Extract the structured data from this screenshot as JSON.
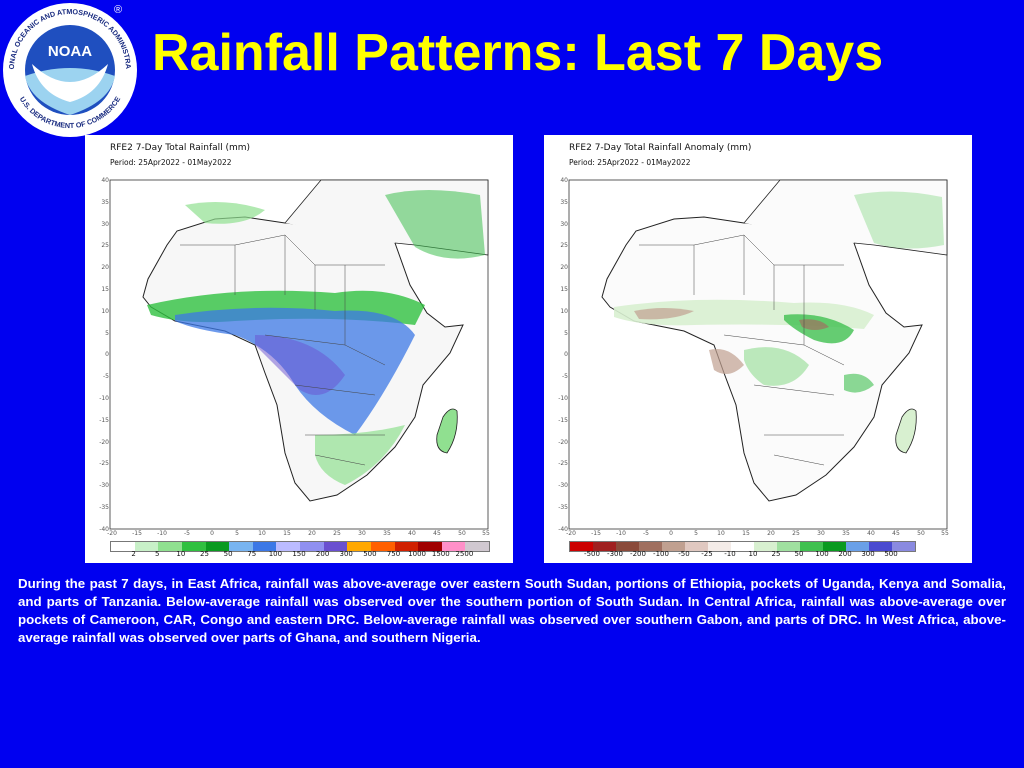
{
  "logo": {
    "center_text": "NOAA",
    "ring_text_top": "NATIONAL OCEANIC AND ATMOSPHERIC ADMINISTRATION",
    "ring_text_bottom": "U.S. DEPARTMENT OF COMMERCE",
    "registered_mark": "®"
  },
  "header": {
    "title": "Rainfall Patterns: Last 7 Days"
  },
  "maps": [
    {
      "title": "RFE2 7-Day Total Rainfall (mm)",
      "period": "Period: 25Apr2022 - 01May2022",
      "y_ticks": [
        "40",
        "35",
        "30",
        "25",
        "20",
        "15",
        "10",
        "5",
        "0",
        "-5",
        "-10",
        "-15",
        "-20",
        "-25",
        "-30",
        "-35",
        "-40"
      ],
      "x_ticks": [
        "-20",
        "-15",
        "-10",
        "-5",
        "0",
        "5",
        "10",
        "15",
        "20",
        "25",
        "30",
        "35",
        "40",
        "45",
        "50",
        "55"
      ],
      "legend_labels": [
        "2",
        "5",
        "10",
        "25",
        "50",
        "75",
        "100",
        "150",
        "200",
        "300",
        "500",
        "750",
        "1000",
        "1500",
        "2500"
      ],
      "legend_colors": [
        "#ffffff",
        "#c8f0c8",
        "#90e090",
        "#30c040",
        "#0a9a20",
        "#78b4f0",
        "#3c78e6",
        "#bbbbff",
        "#9090f0",
        "#6a50d0",
        "#ffa800",
        "#ff6000",
        "#d02000",
        "#a00000",
        "#ff90c8",
        "#d0c8d0"
      ]
    },
    {
      "title": "RFE2 7-Day Total Rainfall Anomaly (mm)",
      "period": "Period: 25Apr2022 - 01May2022",
      "y_ticks": [
        "40",
        "35",
        "30",
        "25",
        "20",
        "15",
        "10",
        "5",
        "0",
        "-5",
        "-10",
        "-15",
        "-20",
        "-25",
        "-30",
        "-35",
        "-40"
      ],
      "x_ticks": [
        "-20",
        "-15",
        "-10",
        "-5",
        "0",
        "5",
        "10",
        "15",
        "20",
        "25",
        "30",
        "35",
        "40",
        "45",
        "50",
        "55"
      ],
      "legend_labels": [
        "-500",
        "-300",
        "-200",
        "-100",
        "-50",
        "-25",
        "-10",
        "10",
        "25",
        "50",
        "100",
        "200",
        "300",
        "500"
      ],
      "legend_colors": [
        "#cc0000",
        "#a02020",
        "#8a4a3a",
        "#a07060",
        "#c0a090",
        "#e0c8c0",
        "#f4ece8",
        "#ffffff",
        "#d8f0d0",
        "#a0e0a0",
        "#40c050",
        "#0a9a20",
        "#6aa0e8",
        "#4a4ad0",
        "#8a8ae0"
      ]
    }
  ],
  "description": "During the past 7 days, in East Africa, rainfall was above-average over eastern South Sudan, portions of Ethiopia, pockets of Uganda, Kenya and Somalia, and parts of Tanzania. Below-average rainfall was observed over the southern portion of South Sudan. In Central Africa, rainfall was above-average over pockets of Cameroon, CAR, Congo and eastern DRC. Below-average rainfall was observed over southern Gabon, and parts of DRC. In West Africa, above-average rainfall was observed over parts of Ghana, and southern Nigeria."
}
